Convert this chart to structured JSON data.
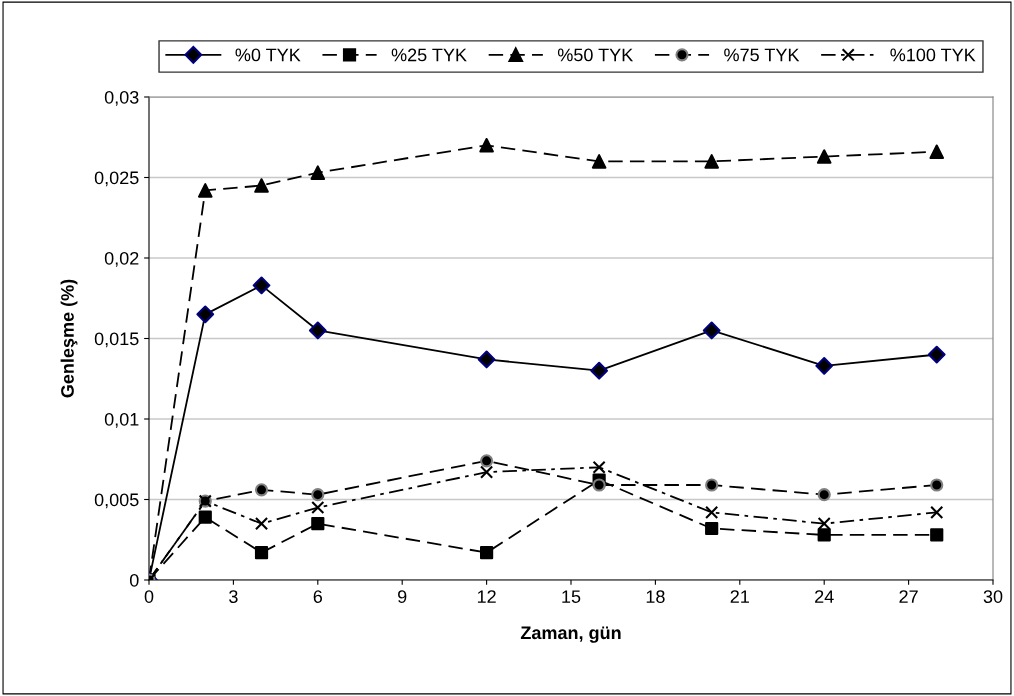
{
  "chart_data": {
    "type": "line",
    "xlabel": "Zaman, gün",
    "ylabel": "Genleşme (%)",
    "x": [
      0,
      2,
      4,
      6,
      12,
      16,
      20,
      24,
      28
    ],
    "series": [
      {
        "name": "%0 TYK",
        "color": "#000000",
        "marker": "diamond",
        "line_style": "solid",
        "values": [
          0,
          0.0165,
          0.0183,
          0.0155,
          0.0137,
          0.013,
          0.0155,
          0.0133,
          0.014
        ]
      },
      {
        "name": "%25 TYK",
        "color": "#000000",
        "marker": "square",
        "line_style": "dashed",
        "values": [
          0,
          0.0039,
          0.0017,
          0.0035,
          0.0017,
          0.0062,
          0.0032,
          0.0028,
          0.0028
        ]
      },
      {
        "name": "%50 TYK",
        "color": "#000000",
        "marker": "triangle",
        "line_style": "dashed",
        "values": [
          0,
          0.0242,
          0.0245,
          0.0253,
          0.027,
          0.026,
          0.026,
          0.0263,
          0.0266
        ]
      },
      {
        "name": "%75 TYK",
        "color": "#000000",
        "marker": "circle",
        "line_style": "dashed",
        "values": [
          0,
          0.0049,
          0.0056,
          0.0053,
          0.0074,
          0.0059,
          0.0059,
          0.0053,
          0.0059
        ]
      },
      {
        "name": "%100 TYK",
        "color": "#000000",
        "marker": "cross",
        "line_style": "dashdot",
        "values": [
          0,
          0.0049,
          0.0035,
          0.0045,
          0.0067,
          0.007,
          0.0042,
          0.0035,
          0.0042
        ]
      }
    ],
    "xlim": [
      0,
      30
    ],
    "xticks": [
      0,
      3,
      6,
      9,
      12,
      15,
      18,
      21,
      24,
      27,
      30
    ],
    "ylim": [
      0,
      0.03
    ],
    "yticks": [
      {
        "value": 0,
        "label": "0"
      },
      {
        "value": 0.005,
        "label": "0,005"
      },
      {
        "value": 0.01,
        "label": "0,01"
      },
      {
        "value": 0.015,
        "label": "0,015"
      },
      {
        "value": 0.02,
        "label": "0,02"
      },
      {
        "value": 0.025,
        "label": "0,025"
      },
      {
        "value": 0.03,
        "label": "0,03"
      }
    ],
    "grid": "y",
    "legend": "top"
  }
}
